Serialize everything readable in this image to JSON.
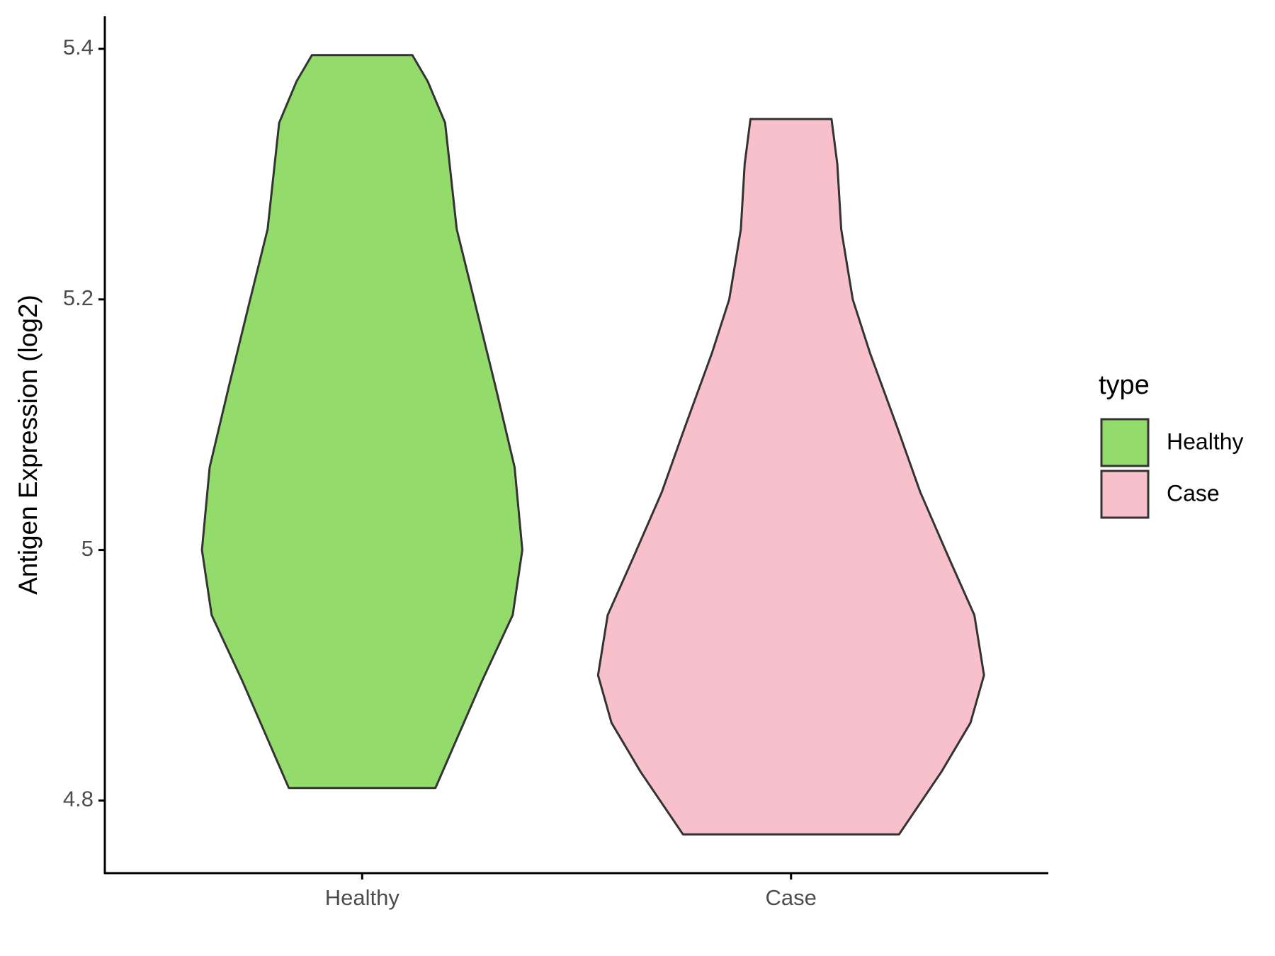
{
  "chart_data": {
    "type": "violin",
    "y_label": "Antigen Expression (log2)",
    "categories": [
      "Healthy",
      "Case"
    ],
    "series": [
      {
        "name": "Healthy",
        "color": "#93dc6b",
        "y": [
          5.395,
          5.374,
          5.341,
          5.256,
          5.2,
          5.131,
          5.066,
          5.0,
          4.948,
          4.895,
          4.849,
          4.81
        ],
        "density": [
          0.26,
          0.34,
          0.43,
          0.49,
          0.58,
          0.69,
          0.79,
          0.83,
          0.78,
          0.62,
          0.49,
          0.38
        ]
      },
      {
        "name": "Case",
        "color": "#f7c0cb",
        "y": [
          5.344,
          5.308,
          5.256,
          5.2,
          5.157,
          5.098,
          5.046,
          4.993,
          4.948,
          4.9,
          4.862,
          4.823,
          4.773
        ],
        "density": [
          0.21,
          0.24,
          0.26,
          0.32,
          0.41,
          0.55,
          0.67,
          0.82,
          0.95,
          1.0,
          0.93,
          0.78,
          0.56
        ]
      }
    ],
    "ylim": [
      4.742,
      5.426
    ],
    "yticks": [
      4.8,
      5.0,
      5.2,
      5.4
    ],
    "grid": false,
    "legend_title": "type",
    "legend_position": "right"
  }
}
